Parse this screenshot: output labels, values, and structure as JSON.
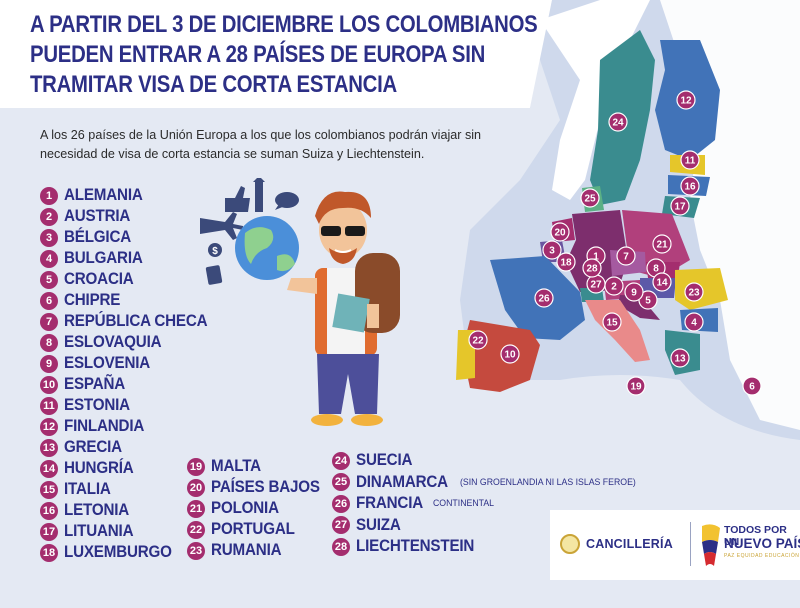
{
  "title_lines": [
    "A PARTIR DEL 3 DE DICIEMBRE LOS COLOMBIANOS",
    "PUEDEN ENTRAR A 28 PAÍSES DE EUROPA SIN",
    "TRAMITAR VISA DE CORTA ESTANCIA"
  ],
  "subtitle": "A los 26 países de la Unión Europa a los que los colombianos podrán viajar sin necesidad de visa de corta estancia se suman Suiza y Liechtenstein.",
  "colors": {
    "title_text": "#2c2f86",
    "badge": "#a42d6e",
    "background": "#e4e9f3",
    "sea": "#cfd9ec"
  },
  "countries_col1": [
    {
      "num": "1",
      "name": "ALEMANIA"
    },
    {
      "num": "2",
      "name": "AUSTRIA"
    },
    {
      "num": "3",
      "name": "BÉLGICA"
    },
    {
      "num": "4",
      "name": "BULGARIA"
    },
    {
      "num": "5",
      "name": "CROACIA"
    },
    {
      "num": "6",
      "name": "CHIPRE"
    },
    {
      "num": "7",
      "name": "REPÚBLICA CHECA"
    },
    {
      "num": "8",
      "name": "ESLOVAQUIA"
    },
    {
      "num": "9",
      "name": "ESLOVENIA"
    },
    {
      "num": "10",
      "name": "ESPAÑA"
    },
    {
      "num": "11",
      "name": "ESTONIA"
    },
    {
      "num": "12",
      "name": "FINLANDIA"
    },
    {
      "num": "13",
      "name": "GRECIA"
    },
    {
      "num": "14",
      "name": "HUNGRÍA"
    },
    {
      "num": "15",
      "name": "ITALIA"
    },
    {
      "num": "16",
      "name": "LETONIA"
    },
    {
      "num": "17",
      "name": "LITUANIA"
    },
    {
      "num": "18",
      "name": "LUXEMBURGO"
    }
  ],
  "countries_col2": [
    {
      "num": "19",
      "name": "MALTA"
    },
    {
      "num": "20",
      "name": "PAÍSES BAJOS"
    },
    {
      "num": "21",
      "name": "POLONIA"
    },
    {
      "num": "22",
      "name": "PORTUGAL"
    },
    {
      "num": "23",
      "name": "RUMANIA"
    }
  ],
  "countries_col3": [
    {
      "num": "24",
      "name": "SUECIA",
      "note": ""
    },
    {
      "num": "25",
      "name": "DINAMARCA",
      "note": "(SIN GROENLANDIA NI LAS ISLAS FEROE)"
    },
    {
      "num": "26",
      "name": "FRANCIA",
      "note": "CONTINENTAL"
    },
    {
      "num": "27",
      "name": "SUIZA",
      "note": ""
    },
    {
      "num": "28",
      "name": "LIECHTENSTEIN",
      "note": ""
    }
  ],
  "logos": {
    "cancilleria": "CANCILLERÍA",
    "todos_line1": "TODOS POR UN",
    "todos_line2": "NUEVO PAÍS",
    "todos_line3": "PAZ  EQUIDAD  EDUCACIÓN"
  },
  "map_labels": [
    "1",
    "2",
    "3",
    "4",
    "5",
    "6",
    "7",
    "8",
    "9",
    "10",
    "11",
    "12",
    "13",
    "14",
    "15",
    "16",
    "17",
    "18",
    "19",
    "20",
    "21",
    "22",
    "23",
    "24",
    "25",
    "26",
    "27",
    "28"
  ],
  "icons": [
    "airplane-icon",
    "thumbs-up-icon",
    "chat-bubble-icon",
    "dollar-coin-icon",
    "passport-icon",
    "landmark-icon",
    "globe-icon",
    "traveler-illustration"
  ]
}
